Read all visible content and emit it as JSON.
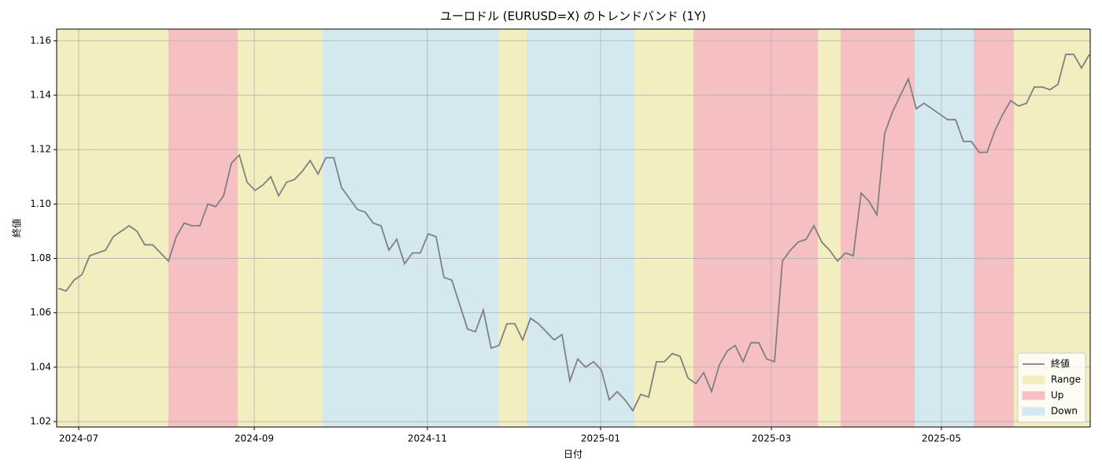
{
  "chart_data": {
    "type": "line",
    "title": "ユーロドル (EURUSD=X) のトレンドバンド (1Y)",
    "xlabel": "日付",
    "ylabel": "終値",
    "series": [
      {
        "name": "終値",
        "color": "#808080",
        "values": [
          1.069,
          1.068,
          1.072,
          1.074,
          1.081,
          1.082,
          1.083,
          1.088,
          1.09,
          1.092,
          1.09,
          1.085,
          1.085,
          1.082,
          1.079,
          1.088,
          1.093,
          1.092,
          1.092,
          1.1,
          1.099,
          1.103,
          1.115,
          1.118,
          1.108,
          1.105,
          1.107,
          1.11,
          1.103,
          1.108,
          1.109,
          1.112,
          1.116,
          1.111,
          1.117,
          1.117,
          1.106,
          1.102,
          1.098,
          1.097,
          1.093,
          1.092,
          1.083,
          1.087,
          1.078,
          1.082,
          1.082,
          1.089,
          1.088,
          1.073,
          1.072,
          1.063,
          1.054,
          1.053,
          1.061,
          1.047,
          1.048,
          1.056,
          1.056,
          1.05,
          1.058,
          1.056,
          1.053,
          1.05,
          1.052,
          1.035,
          1.043,
          1.04,
          1.042,
          1.039,
          1.028,
          1.031,
          1.028,
          1.024,
          1.03,
          1.029,
          1.042,
          1.042,
          1.045,
          1.044,
          1.036,
          1.034,
          1.038,
          1.031,
          1.041,
          1.046,
          1.048,
          1.042,
          1.049,
          1.049,
          1.043,
          1.042,
          1.079,
          1.083,
          1.086,
          1.087,
          1.092,
          1.086,
          1.083,
          1.079,
          1.082,
          1.081,
          1.104,
          1.101,
          1.096,
          1.126,
          1.134,
          1.14,
          1.146,
          1.135,
          1.137,
          1.135,
          1.133,
          1.131,
          1.131,
          1.123,
          1.123,
          1.119,
          1.119,
          1.127,
          1.133,
          1.138,
          1.136,
          1.137,
          1.143,
          1.143,
          1.142,
          1.144,
          1.155,
          1.155,
          1.15,
          1.155
        ]
      }
    ],
    "band_types": [
      {
        "name": "Range",
        "color": "#f3eec0",
        "spans": [
          [
            -0.2,
            14.0
          ],
          [
            22.8,
            33.6
          ],
          [
            55.9,
            59.5
          ],
          [
            73.2,
            80.7
          ],
          [
            96.5,
            99.4
          ],
          [
            121.4,
            131.1
          ]
        ]
      },
      {
        "name": "Up",
        "color": "#f6c0c3",
        "spans": [
          [
            14.0,
            22.8
          ],
          [
            80.7,
            96.5
          ],
          [
            99.4,
            108.8
          ],
          [
            116.3,
            121.4
          ]
        ]
      },
      {
        "name": "Down",
        "color": "#d3e9ef",
        "spans": [
          [
            33.6,
            55.9
          ],
          [
            59.5,
            73.2
          ],
          [
            108.8,
            116.3
          ]
        ]
      }
    ],
    "xlim": [
      -0.2,
      131.1
    ],
    "xticks": [
      {
        "value": 2.6,
        "label": "2024-07"
      },
      {
        "value": 24.9,
        "label": "2024-09"
      },
      {
        "value": 46.9,
        "label": "2024-11"
      },
      {
        "value": 68.9,
        "label": "2025-01"
      },
      {
        "value": 90.6,
        "label": "2025-03"
      },
      {
        "value": 112.2,
        "label": "2025-05"
      }
    ],
    "ylim": [
      1.018,
      1.1643
    ],
    "yticks": [
      1.02,
      1.04,
      1.06,
      1.08,
      {
        "value": 1.1,
        "label": "1.10"
      },
      1.12,
      1.14,
      1.16
    ],
    "grid": true,
    "legend": "lower right"
  }
}
